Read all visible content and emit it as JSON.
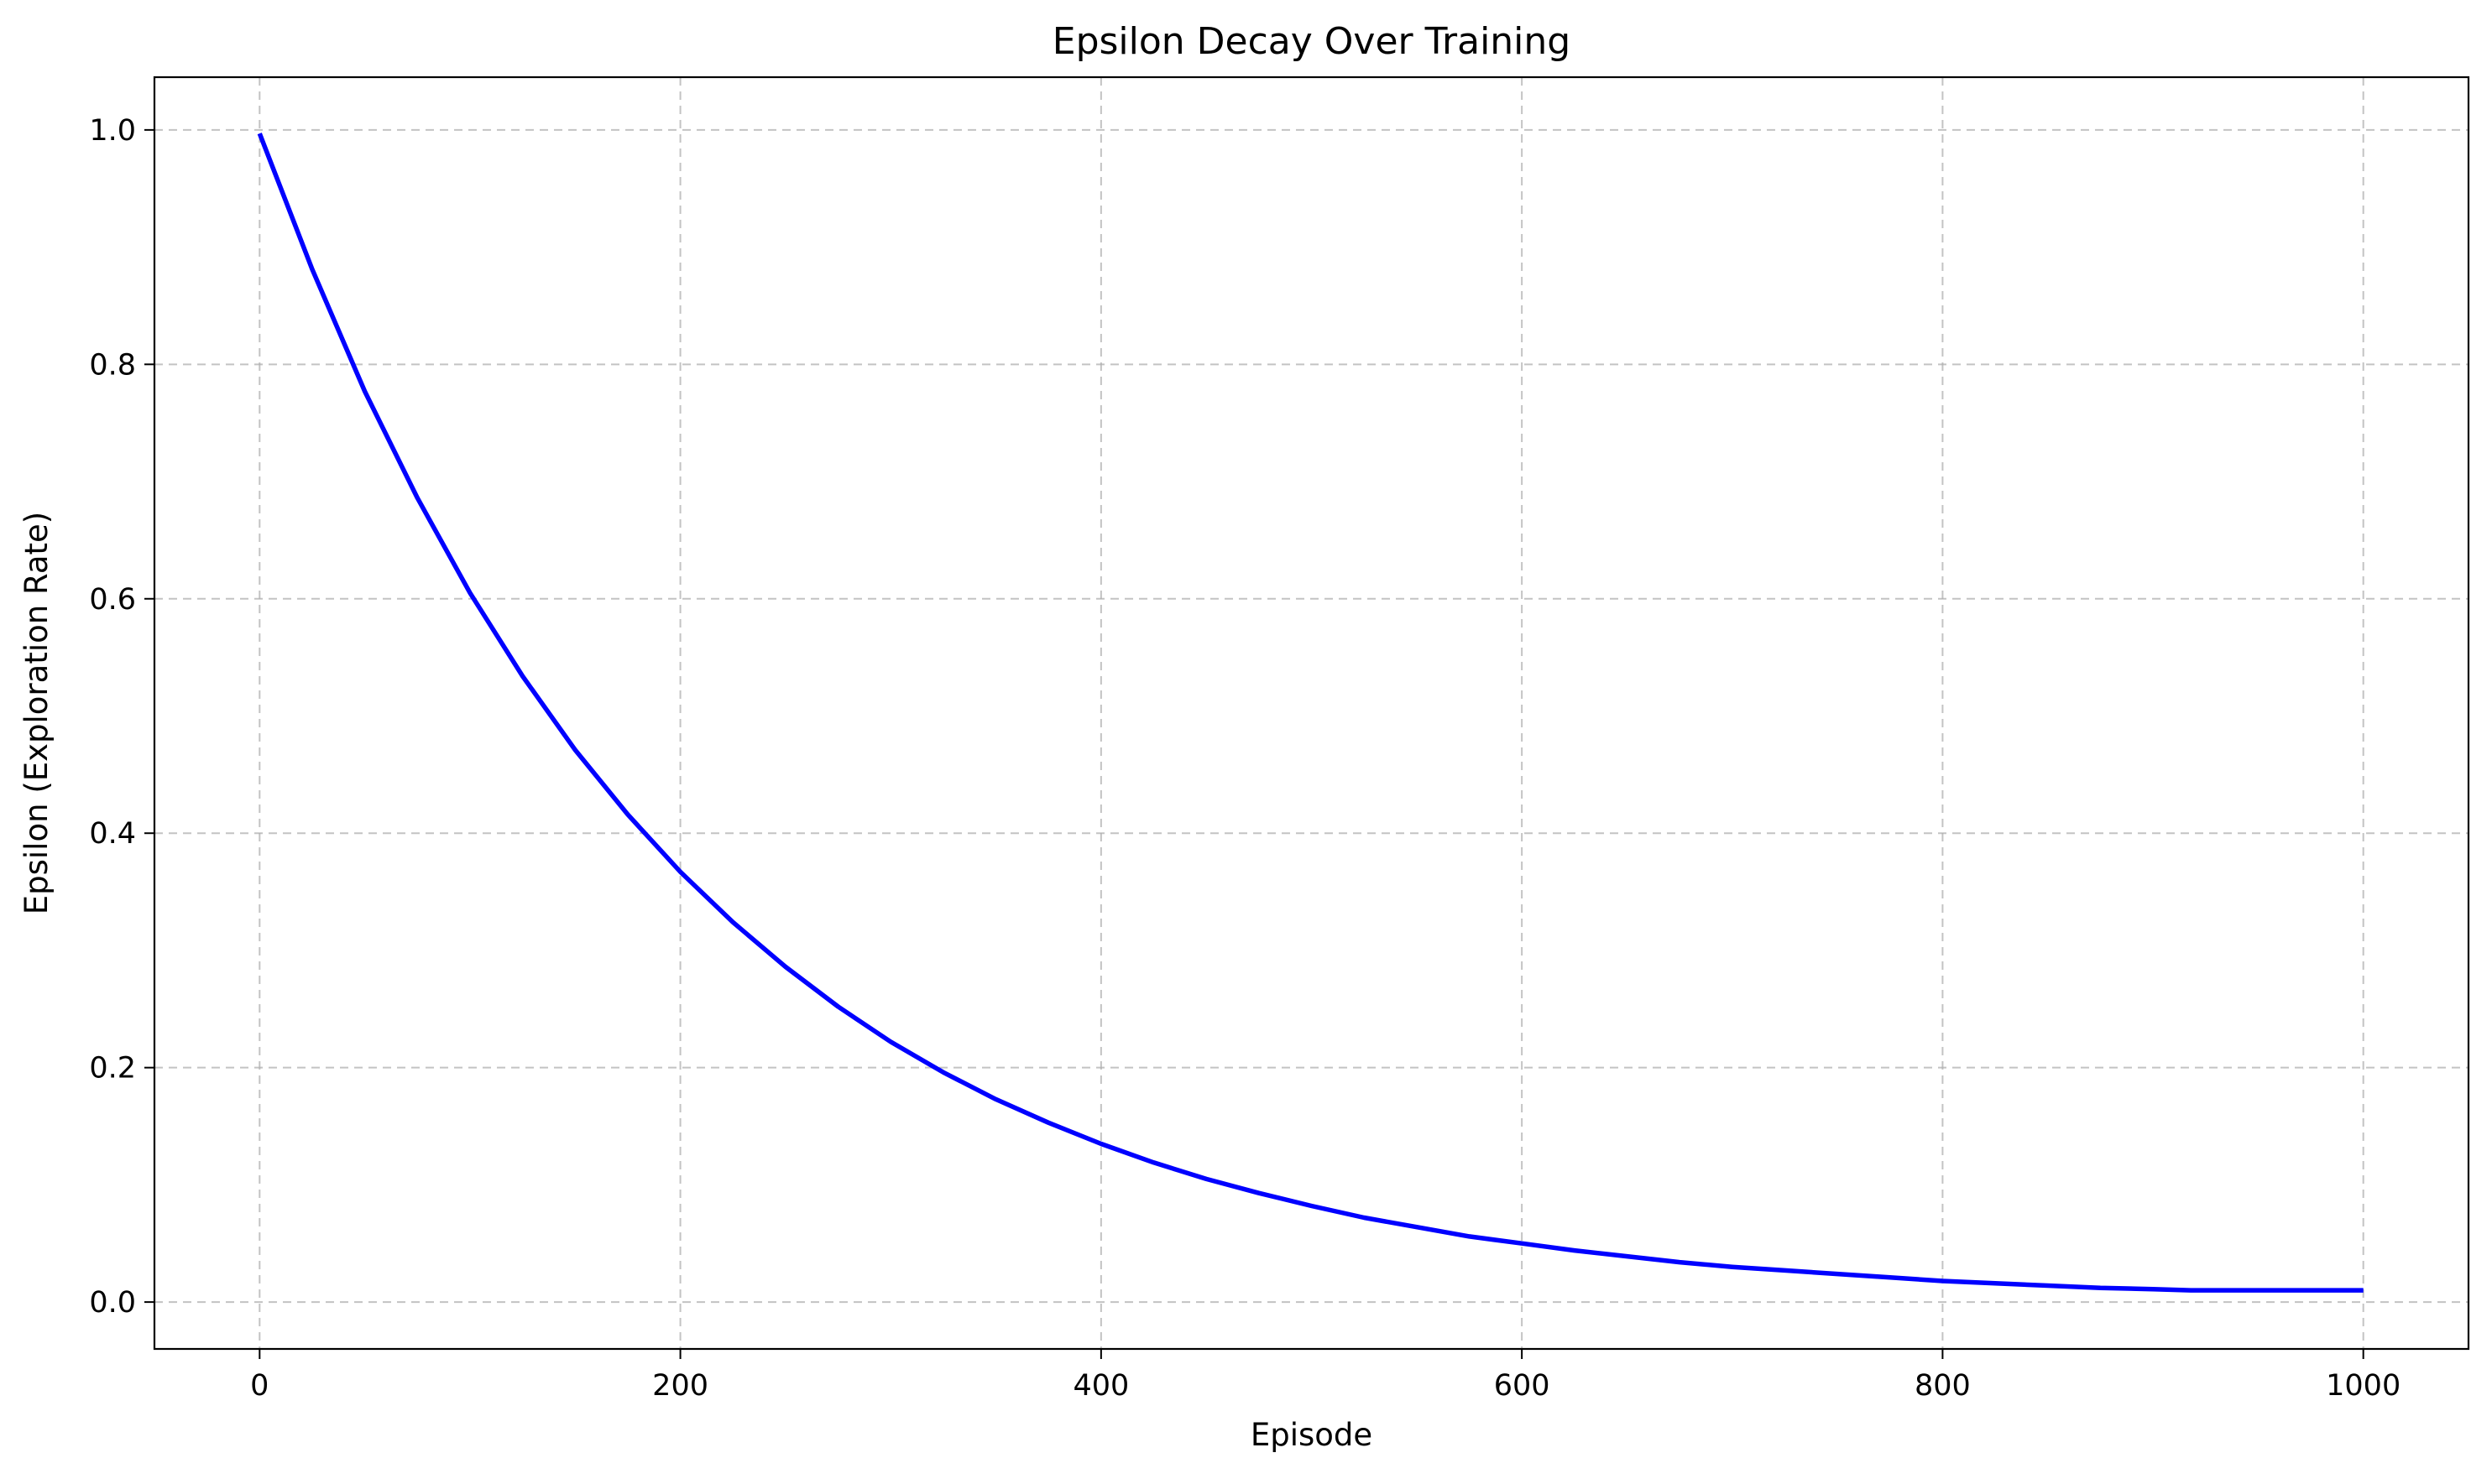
{
  "chart_data": {
    "type": "line",
    "title": "Epsilon Decay Over Training",
    "xlabel": "Episode",
    "ylabel": "Epsilon (Exploration Rate)",
    "xlim": [
      -50,
      1050
    ],
    "ylim": [
      -0.04,
      1.045
    ],
    "xticks": [
      0,
      200,
      400,
      600,
      800,
      1000
    ],
    "xtick_labels": [
      "0",
      "200",
      "400",
      "600",
      "800",
      "1000"
    ],
    "yticks": [
      0.0,
      0.2,
      0.4,
      0.6,
      0.8,
      1.0
    ],
    "ytick_labels": [
      "0.0",
      "0.2",
      "0.4",
      "0.6",
      "0.8",
      "1.0"
    ],
    "grid": true,
    "series": [
      {
        "color": "#0000ff",
        "x": [
          0,
          25,
          50,
          75,
          100,
          125,
          150,
          175,
          200,
          225,
          250,
          275,
          300,
          325,
          350,
          375,
          400,
          425,
          450,
          475,
          500,
          525,
          550,
          575,
          600,
          625,
          650,
          675,
          700,
          725,
          750,
          775,
          800,
          825,
          850,
          875,
          900,
          918,
          925,
          950,
          975,
          1000
        ],
        "y": [
          0.997,
          0.881,
          0.777,
          0.686,
          0.605,
          0.534,
          0.471,
          0.416,
          0.367,
          0.324,
          0.286,
          0.252,
          0.222,
          0.196,
          0.173,
          0.153,
          0.135,
          0.119,
          0.105,
          0.093,
          0.082,
          0.072,
          0.064,
          0.056,
          0.05,
          0.044,
          0.039,
          0.034,
          0.03,
          0.027,
          0.024,
          0.021,
          0.018,
          0.016,
          0.014,
          0.012,
          0.011,
          0.01,
          0.01,
          0.01,
          0.01,
          0.01
        ]
      }
    ]
  }
}
